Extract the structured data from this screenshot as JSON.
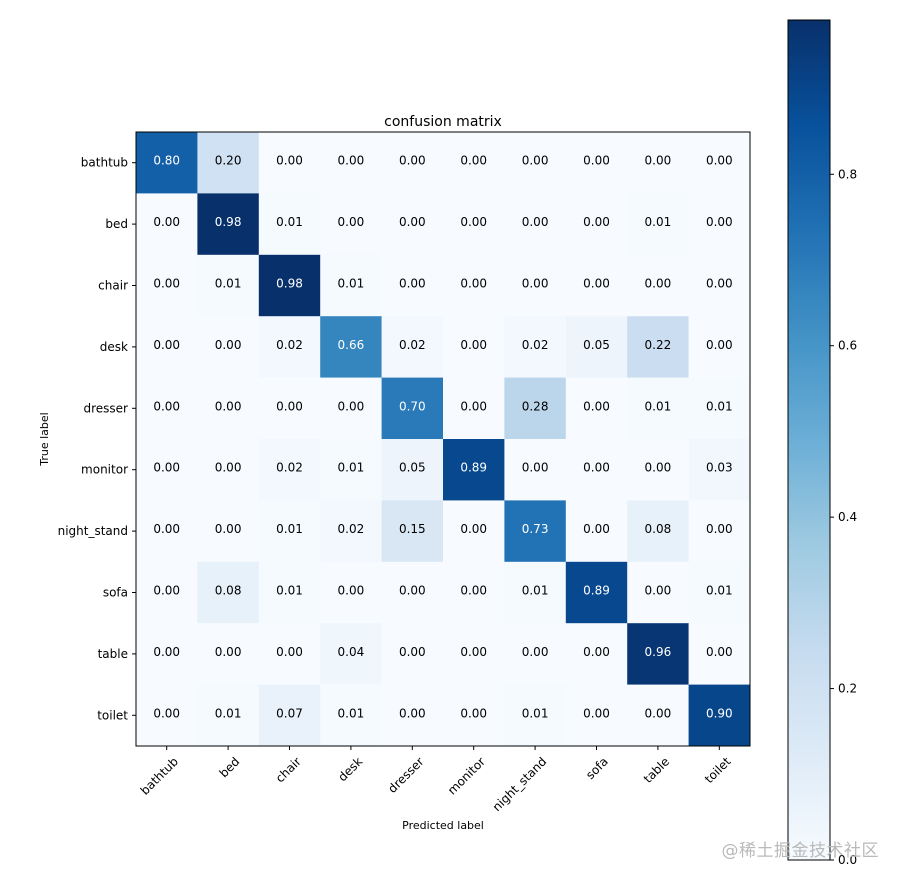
{
  "chart_data": {
    "type": "heatmap",
    "title": "confusion matrix",
    "xlabel": "Predicted label",
    "ylabel": "True label",
    "x_categories": [
      "bathtub",
      "bed",
      "chair",
      "desk",
      "dresser",
      "monitor",
      "night_stand",
      "sofa",
      "table",
      "toilet"
    ],
    "y_categories": [
      "bathtub",
      "bed",
      "chair",
      "desk",
      "dresser",
      "monitor",
      "night_stand",
      "sofa",
      "table",
      "toilet"
    ],
    "values": [
      [
        0.8,
        0.2,
        0.0,
        0.0,
        0.0,
        0.0,
        0.0,
        0.0,
        0.0,
        0.0
      ],
      [
        0.0,
        0.98,
        0.01,
        0.0,
        0.0,
        0.0,
        0.0,
        0.0,
        0.01,
        0.0
      ],
      [
        0.0,
        0.01,
        0.98,
        0.01,
        0.0,
        0.0,
        0.0,
        0.0,
        0.0,
        0.0
      ],
      [
        0.0,
        0.0,
        0.02,
        0.66,
        0.02,
        0.0,
        0.02,
        0.05,
        0.22,
        0.0
      ],
      [
        0.0,
        0.0,
        0.0,
        0.0,
        0.7,
        0.0,
        0.28,
        0.0,
        0.01,
        0.01
      ],
      [
        0.0,
        0.0,
        0.02,
        0.01,
        0.05,
        0.89,
        0.0,
        0.0,
        0.0,
        0.03
      ],
      [
        0.0,
        0.0,
        0.01,
        0.02,
        0.15,
        0.0,
        0.73,
        0.0,
        0.08,
        0.0
      ],
      [
        0.0,
        0.08,
        0.01,
        0.0,
        0.0,
        0.0,
        0.01,
        0.89,
        0.0,
        0.01
      ],
      [
        0.0,
        0.0,
        0.0,
        0.04,
        0.0,
        0.0,
        0.0,
        0.0,
        0.96,
        0.0
      ],
      [
        0.0,
        0.01,
        0.07,
        0.01,
        0.0,
        0.0,
        0.01,
        0.0,
        0.0,
        0.9
      ]
    ],
    "value_format": "0.00",
    "colormap": "Blues",
    "colorbar": {
      "min": 0.0,
      "max": 0.98,
      "ticks": [
        "0.0",
        "0.2",
        "0.4",
        "0.6",
        "0.8"
      ]
    },
    "text_color_light": "#ffffff",
    "text_color_dark": "#000000"
  },
  "watermark": "@稀土掘金技术社区"
}
